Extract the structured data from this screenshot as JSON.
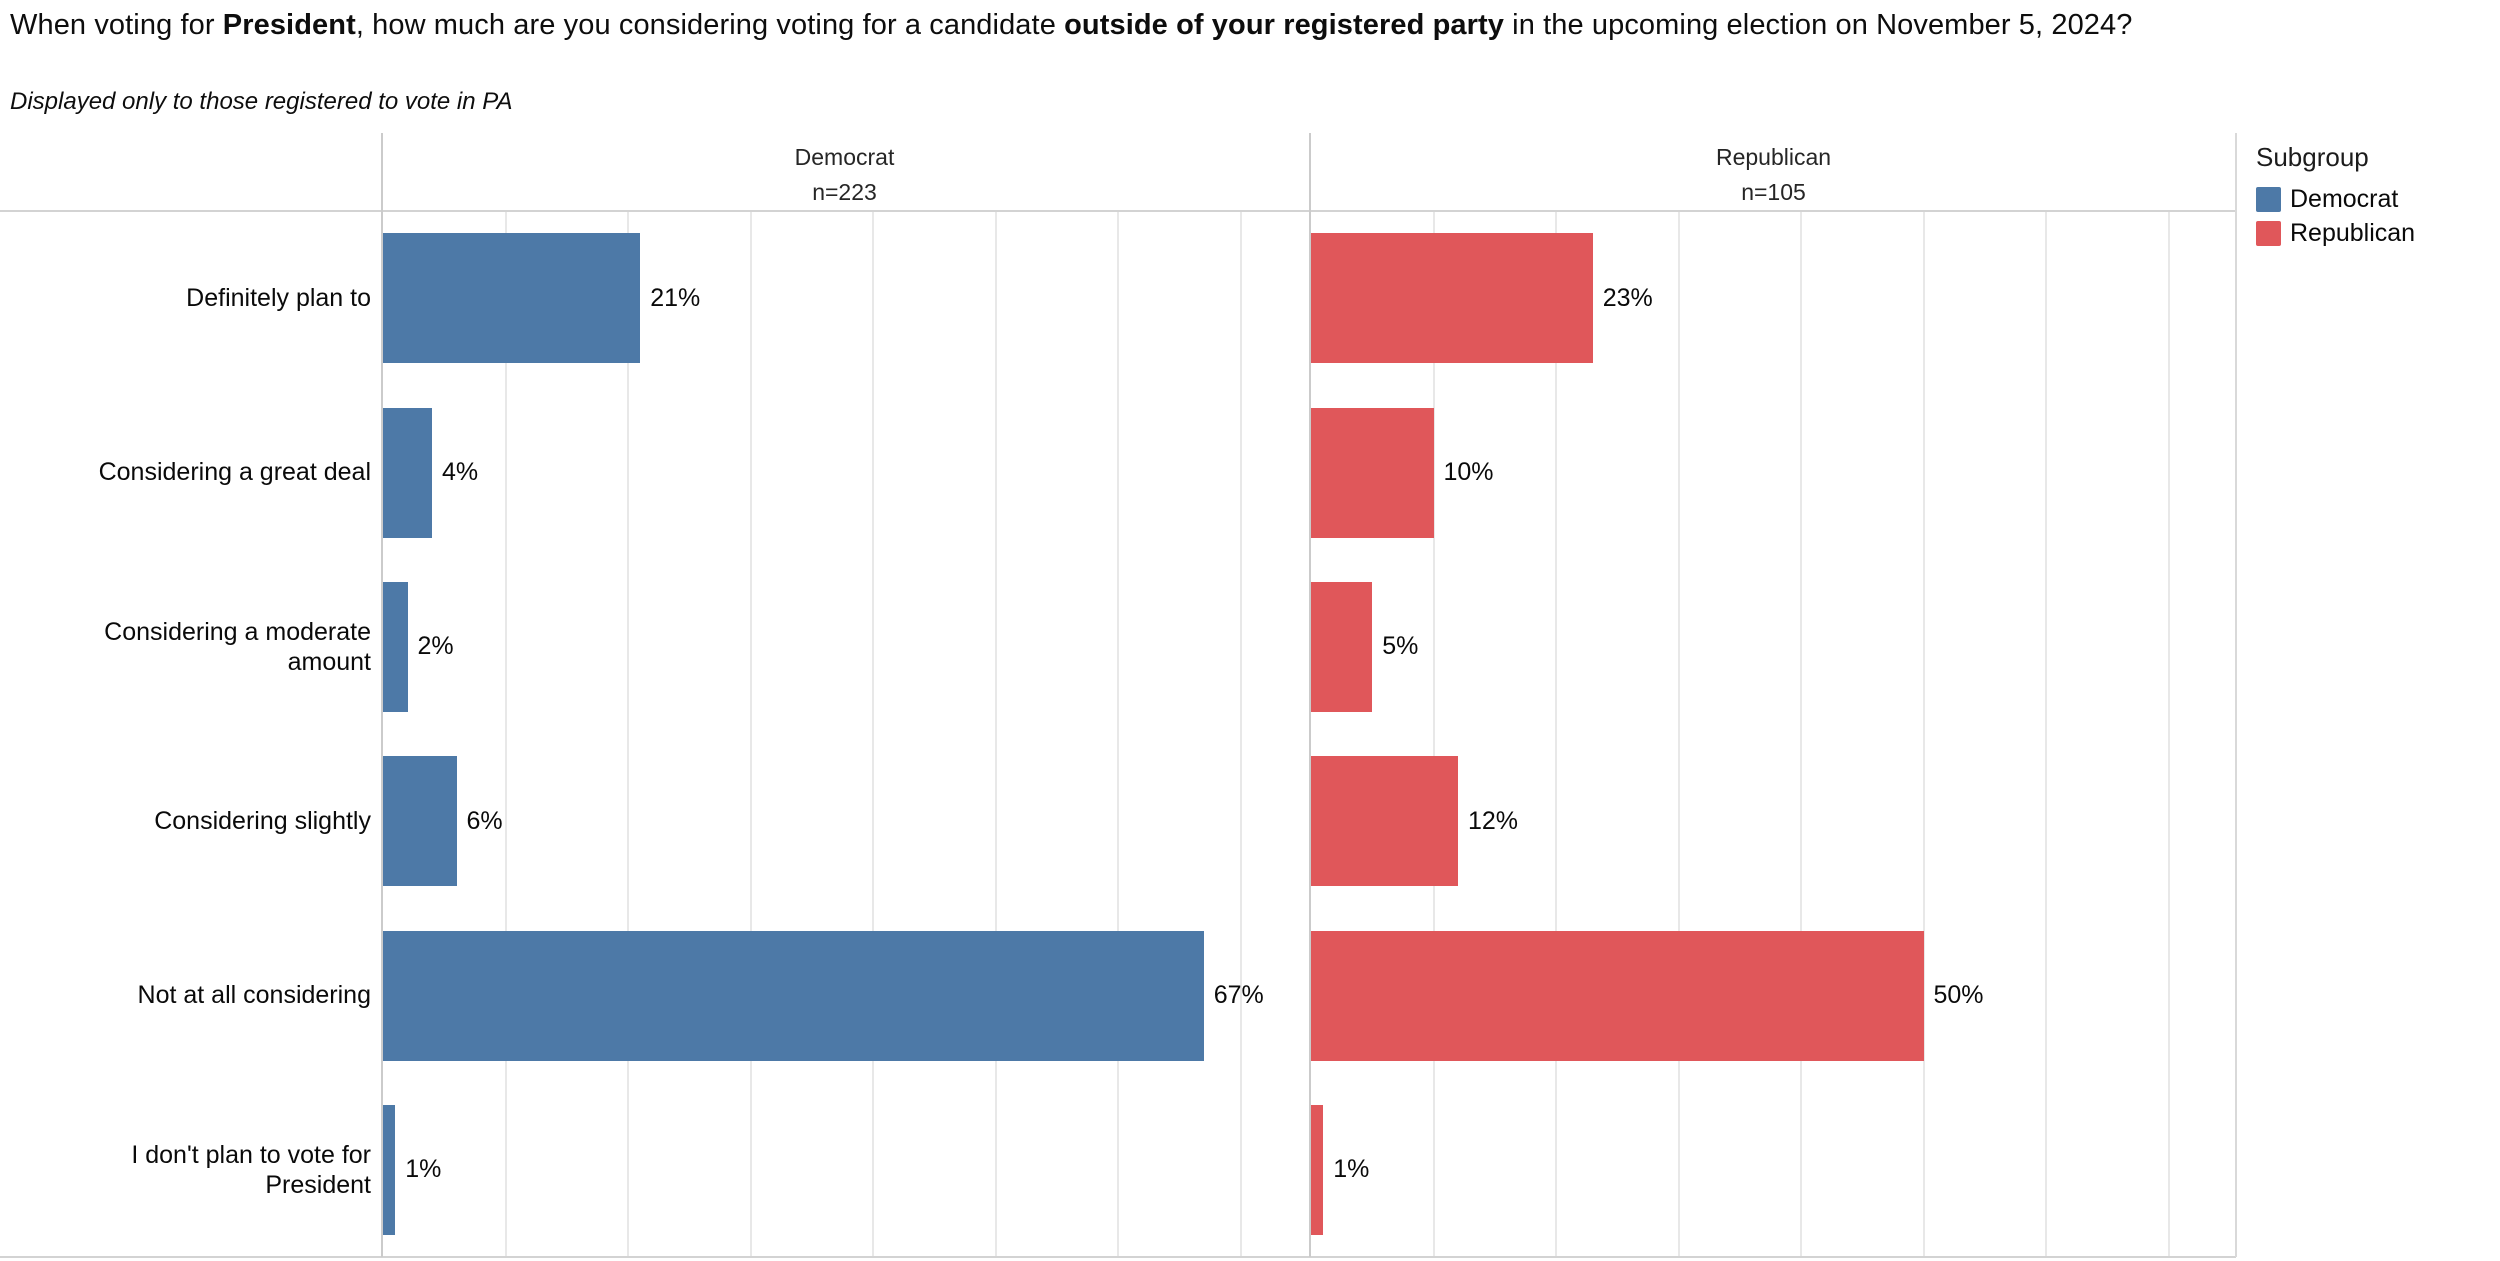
{
  "chart_data": {
    "type": "bar",
    "orientation": "horizontal",
    "title_segments": [
      {
        "text": "When voting for ",
        "bold": false
      },
      {
        "text": "President",
        "bold": true
      },
      {
        "text": ", how much are you considering voting for a candidate ",
        "bold": false
      },
      {
        "text": "outside of your registered party",
        "bold": true
      },
      {
        "text": " in the upcoming election on November 5, 2024?",
        "bold": false
      }
    ],
    "subtitle": "Displayed only to those registered to vote in PA",
    "categories": [
      "Definitely plan to",
      "Considering a great deal",
      "Considering a moderate amount",
      "Considering slightly",
      "Not at all considering",
      "I don't plan to vote for President"
    ],
    "value_suffix": "%",
    "xlim": [
      0,
      75
    ],
    "gridline_step_pct": 10,
    "grid_on": true,
    "facets": [
      {
        "label": "Democrat",
        "n_label": "n=223",
        "color": "#4d79a7",
        "values": [
          21,
          4,
          2,
          6,
          67,
          1
        ]
      },
      {
        "label": "Republican",
        "n_label": "n=105",
        "color": "#e0575a",
        "values": [
          23,
          10,
          5,
          12,
          50,
          1
        ]
      }
    ],
    "legend": {
      "title": "Subgroup",
      "position": "top-right",
      "entries": [
        {
          "label": "Democrat",
          "color": "#4d79a7"
        },
        {
          "label": "Republican",
          "color": "#e0575a"
        }
      ]
    }
  }
}
